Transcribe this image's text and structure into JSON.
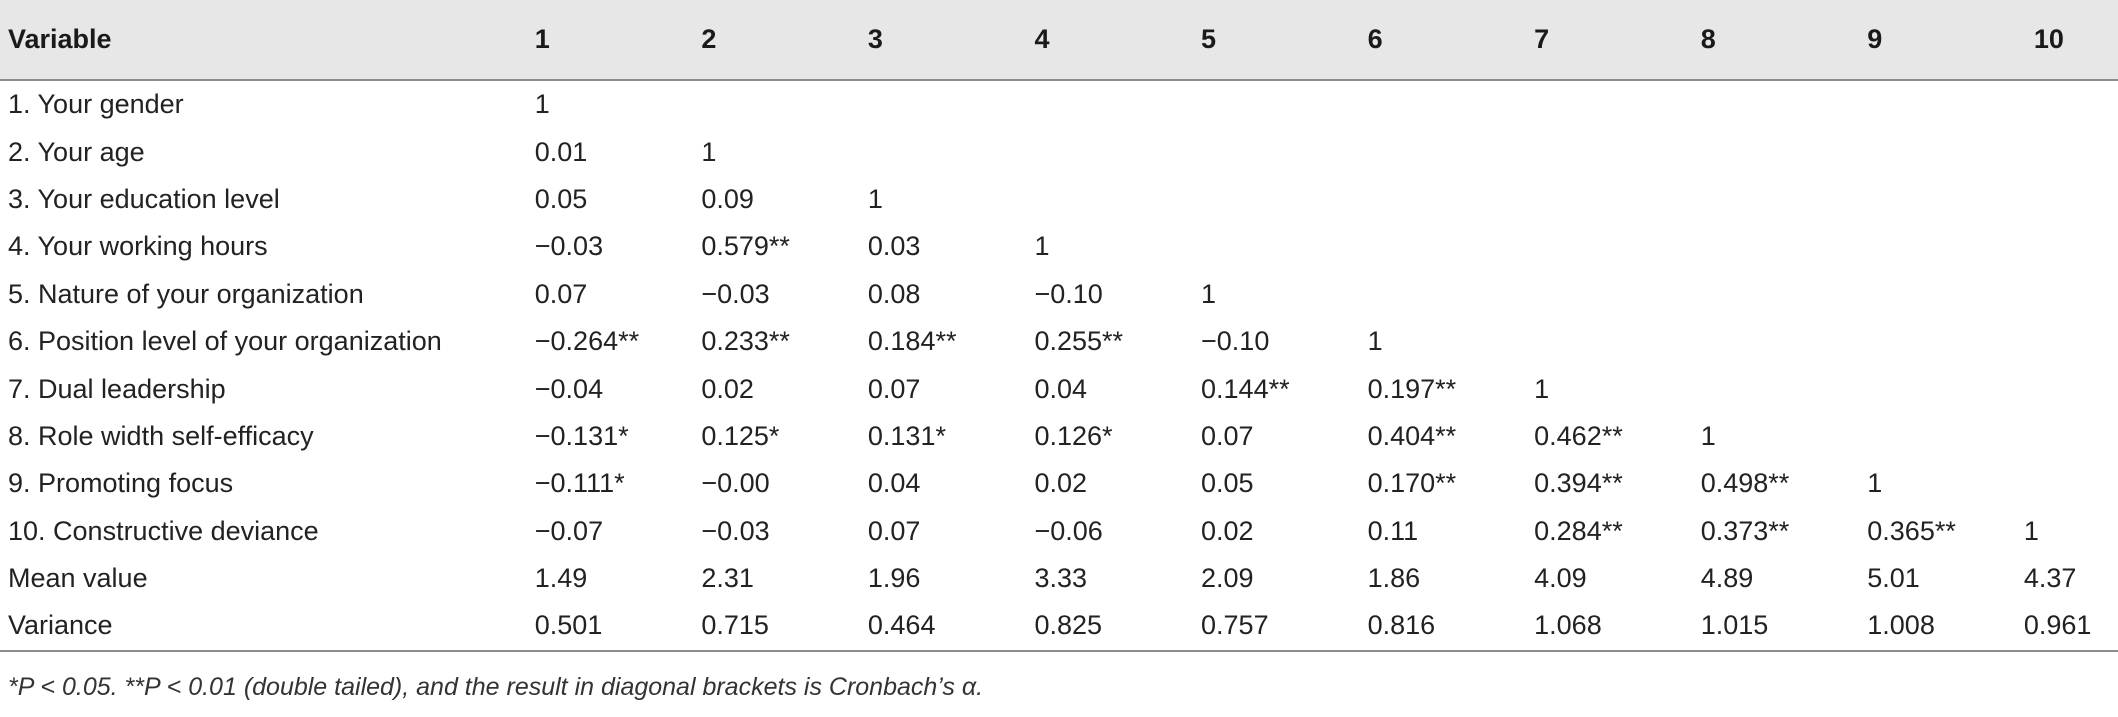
{
  "table": {
    "headers": [
      "Variable",
      "1",
      "2",
      "3",
      "4",
      "5",
      "6",
      "7",
      "8",
      "9",
      "10"
    ],
    "rows": [
      [
        "1. Your gender",
        "1",
        "",
        "",
        "",
        "",
        "",
        "",
        "",
        "",
        ""
      ],
      [
        "2. Your age",
        "0.01",
        "1",
        "",
        "",
        "",
        "",
        "",
        "",
        "",
        ""
      ],
      [
        "3. Your education level",
        "0.05",
        "0.09",
        "1",
        "",
        "",
        "",
        "",
        "",
        "",
        ""
      ],
      [
        "4. Your working hours",
        "−0.03",
        "0.579**",
        "0.03",
        "1",
        "",
        "",
        "",
        "",
        "",
        ""
      ],
      [
        "5. Nature of your organization",
        "0.07",
        "−0.03",
        "0.08",
        "−0.10",
        "1",
        "",
        "",
        "",
        "",
        ""
      ],
      [
        "6. Position level of your organization",
        "−0.264**",
        "0.233**",
        "0.184**",
        "0.255**",
        "−0.10",
        "1",
        "",
        "",
        "",
        ""
      ],
      [
        "7. Dual leadership",
        "−0.04",
        "0.02",
        "0.07",
        "0.04",
        "0.144**",
        "0.197**",
        "1",
        "",
        "",
        ""
      ],
      [
        "8. Role width self-efficacy",
        "−0.131*",
        "0.125*",
        "0.131*",
        "0.126*",
        "0.07",
        "0.404**",
        "0.462**",
        "1",
        "",
        ""
      ],
      [
        "9. Promoting focus",
        "−0.111*",
        "−0.00",
        "0.04",
        "0.02",
        "0.05",
        "0.170**",
        "0.394**",
        "0.498**",
        "1",
        ""
      ],
      [
        "10. Constructive deviance",
        "−0.07",
        "−0.03",
        "0.07",
        "−0.06",
        "0.02",
        "0.11",
        "0.284**",
        "0.373**",
        "0.365**",
        "1"
      ],
      [
        "Mean value",
        "1.49",
        "2.31",
        "1.96",
        "3.33",
        "2.09",
        "1.86",
        "4.09",
        "4.89",
        "5.01",
        "4.37"
      ],
      [
        "Variance",
        "0.501",
        "0.715",
        "0.464",
        "0.825",
        "0.757",
        "0.816",
        "1.068",
        "1.015",
        "1.008",
        "0.961"
      ]
    ]
  },
  "footnote": "*P < 0.05. **P < 0.01 (double tailed), and the result in diagonal brackets is Cronbach’s α."
}
